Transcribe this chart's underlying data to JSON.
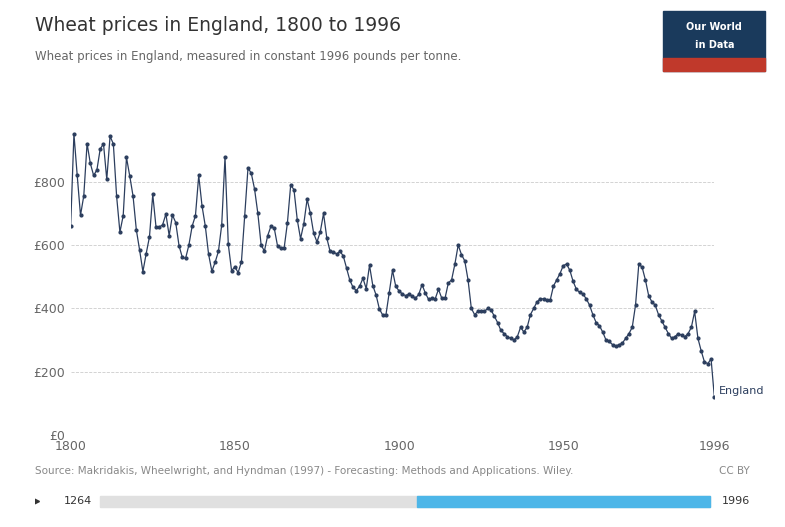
{
  "title": "Wheat prices in England, 1800 to 1996",
  "subtitle": "Wheat prices in England, measured in constant 1996 pounds per tonne.",
  "source": "Source: Makridakis, Wheelwright, and Hyndman (1997) - Forecasting: Methods and Applications. Wiley.",
  "cc_label": "CC BY",
  "series_label": "England",
  "line_color": "#2c3e5e",
  "background_color": "#ffffff",
  "grid_color": "#cccccc",
  "ylabel_prefix": "£",
  "yticks": [
    0,
    200,
    400,
    600,
    800
  ],
  "xticks": [
    1800,
    1850,
    1900,
    1950,
    1996
  ],
  "xlim": [
    1800,
    1996
  ],
  "ylim": [
    0,
    1000
  ],
  "logo_bg": "#1a3a5c",
  "logo_red": "#c0392b",
  "logo_text1": "Our World",
  "logo_text2": "in Data",
  "slider_color": "#4db6e8",
  "slider_min": 1264,
  "slider_max": 1996,
  "years": [
    1800,
    1801,
    1802,
    1803,
    1804,
    1805,
    1806,
    1807,
    1808,
    1809,
    1810,
    1811,
    1812,
    1813,
    1814,
    1815,
    1816,
    1817,
    1818,
    1819,
    1820,
    1821,
    1822,
    1823,
    1824,
    1825,
    1826,
    1827,
    1828,
    1829,
    1830,
    1831,
    1832,
    1833,
    1834,
    1835,
    1836,
    1837,
    1838,
    1839,
    1840,
    1841,
    1842,
    1843,
    1844,
    1845,
    1846,
    1847,
    1848,
    1849,
    1850,
    1851,
    1852,
    1853,
    1854,
    1855,
    1856,
    1857,
    1858,
    1859,
    1860,
    1861,
    1862,
    1863,
    1864,
    1865,
    1866,
    1867,
    1868,
    1869,
    1870,
    1871,
    1872,
    1873,
    1874,
    1875,
    1876,
    1877,
    1878,
    1879,
    1880,
    1881,
    1882,
    1883,
    1884,
    1885,
    1886,
    1887,
    1888,
    1889,
    1890,
    1891,
    1892,
    1893,
    1894,
    1895,
    1896,
    1897,
    1898,
    1899,
    1900,
    1901,
    1902,
    1903,
    1904,
    1905,
    1906,
    1907,
    1908,
    1909,
    1910,
    1911,
    1912,
    1913,
    1914,
    1915,
    1916,
    1917,
    1918,
    1919,
    1920,
    1921,
    1922,
    1923,
    1924,
    1925,
    1926,
    1927,
    1928,
    1929,
    1930,
    1931,
    1932,
    1933,
    1934,
    1935,
    1936,
    1937,
    1938,
    1939,
    1940,
    1941,
    1942,
    1943,
    1944,
    1945,
    1946,
    1947,
    1948,
    1949,
    1950,
    1951,
    1952,
    1953,
    1954,
    1955,
    1956,
    1957,
    1958,
    1959,
    1960,
    1961,
    1962,
    1963,
    1964,
    1965,
    1966,
    1967,
    1968,
    1969,
    1970,
    1971,
    1972,
    1973,
    1974,
    1975,
    1976,
    1977,
    1978,
    1979,
    1980,
    1981,
    1982,
    1983,
    1984,
    1985,
    1986,
    1987,
    1988,
    1989,
    1990,
    1991,
    1992,
    1993,
    1994,
    1995,
    1996
  ],
  "prices": [
    659,
    951,
    820,
    694,
    756,
    921,
    858,
    820,
    838,
    904,
    920,
    808,
    944,
    920,
    754,
    641,
    693,
    877,
    818,
    755,
    648,
    584,
    516,
    573,
    626,
    760,
    656,
    657,
    664,
    698,
    630,
    695,
    671,
    598,
    561,
    558,
    600,
    660,
    693,
    820,
    724,
    660,
    571,
    517,
    546,
    580,
    664,
    878,
    602,
    519,
    531,
    513,
    547,
    693,
    844,
    827,
    777,
    700,
    600,
    581,
    630,
    660,
    653,
    597,
    590,
    590,
    670,
    790,
    775,
    680,
    620,
    668,
    745,
    700,
    637,
    610,
    641,
    700,
    622,
    580,
    578,
    572,
    580,
    566,
    527,
    489,
    466,
    456,
    470,
    495,
    462,
    536,
    472,
    442,
    398,
    379,
    379,
    449,
    520,
    469,
    455,
    445,
    440,
    445,
    438,
    432,
    444,
    475,
    448,
    428,
    432,
    430,
    460,
    432,
    432,
    480,
    490,
    540,
    600,
    570,
    550,
    490,
    400,
    380,
    390,
    390,
    390,
    400,
    395,
    375,
    355,
    330,
    320,
    310,
    305,
    300,
    310,
    340,
    325,
    340,
    380,
    400,
    420,
    430,
    430,
    425,
    425,
    470,
    490,
    510,
    535,
    540,
    520,
    485,
    460,
    450,
    445,
    430,
    410,
    380,
    355,
    345,
    325,
    300,
    295,
    285,
    280,
    285,
    290,
    305,
    320,
    340,
    410,
    540,
    530,
    490,
    440,
    420,
    410,
    380,
    360,
    340,
    320,
    305,
    310,
    320,
    315,
    310,
    320,
    340,
    390,
    305,
    265,
    230,
    225,
    240,
    120
  ]
}
